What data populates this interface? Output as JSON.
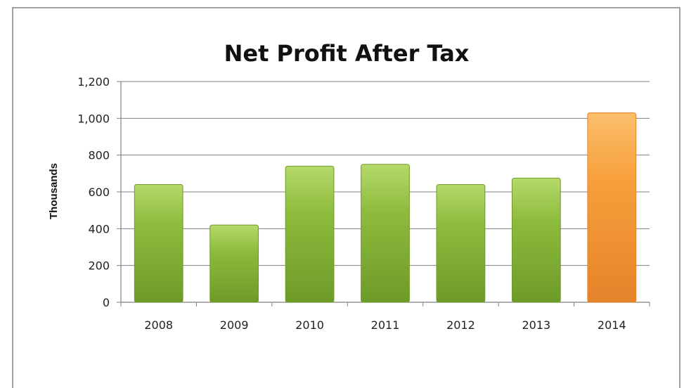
{
  "chart_data": {
    "type": "bar",
    "title": "Net Profit After Tax",
    "xlabel": "",
    "ylabel": "Thousands",
    "categories": [
      "2008",
      "2009",
      "2010",
      "2011",
      "2012",
      "2013",
      "2014"
    ],
    "values": [
      640,
      420,
      740,
      750,
      640,
      675,
      1030
    ],
    "ylim": [
      0,
      1200
    ],
    "yticks": [
      0,
      200,
      400,
      600,
      800,
      1000,
      1200
    ],
    "ytick_labels": [
      "0",
      "200",
      "400",
      "600",
      "800",
      "1,000",
      "1,200"
    ],
    "grid": true,
    "legend": "none",
    "colors": {
      "bar": "#8dbb3c",
      "bar_light": "#b5d96a",
      "bar_dark": "#6e9a28",
      "highlight": "#f7a03c",
      "highlight_light": "#fbbf6c",
      "highlight_dark": "#e5832a",
      "highlight_category": "2014",
      "grid": "#808080",
      "axis": "#808080",
      "border": "#808080"
    }
  }
}
